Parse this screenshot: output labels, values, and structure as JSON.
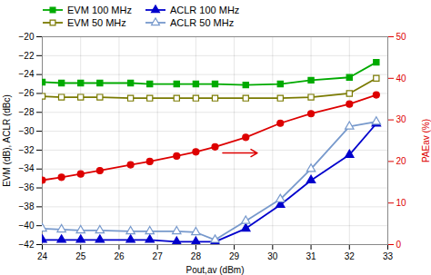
{
  "chart_data": {
    "type": "line",
    "x_label": "Pout,av (dBm)",
    "y_label": "EVM (dB), ACLR (dBc)",
    "y2_label": "PAEav (%)",
    "x": [
      24.0,
      24.5,
      25.0,
      25.5,
      26.3,
      26.8,
      27.5,
      28.0,
      28.5,
      29.3,
      30.2,
      31.0,
      32.0,
      32.7
    ],
    "series": [
      {
        "name": "EVM 100 MHz",
        "color": "#00aa00",
        "marker": "square",
        "values": [
          -24.8,
          -24.9,
          -24.9,
          -24.9,
          -24.9,
          -25.0,
          -25.0,
          -25.0,
          -25.0,
          -25.1,
          -25.0,
          -24.6,
          -24.3,
          -22.7
        ]
      },
      {
        "name": "EVM 50 MHz",
        "color": "#7a7a00",
        "marker": "square-open",
        "values": [
          -26.3,
          -26.4,
          -26.4,
          -26.4,
          -26.5,
          -26.5,
          -26.5,
          -26.5,
          -26.5,
          -26.5,
          -26.5,
          -26.4,
          -26.0,
          -24.4
        ]
      },
      {
        "name": "ACLR 100 MHz",
        "color": "#0000cc",
        "marker": "triangle",
        "values": [
          -41.5,
          -41.5,
          -41.5,
          -41.5,
          -41.5,
          -41.5,
          -41.7,
          -41.7,
          -41.7,
          -40.3,
          -37.8,
          -35.2,
          -32.5,
          -29.2
        ]
      },
      {
        "name": "ACLR 50 MHz",
        "color": "#7799cc",
        "marker": "triangle-open",
        "values": [
          -40.3,
          -40.4,
          -40.5,
          -40.5,
          -40.6,
          -40.6,
          -40.6,
          -40.7,
          -41.5,
          -39.5,
          -37.2,
          -34.0,
          -29.5,
          -29.0
        ]
      },
      {
        "color": "#dd0000",
        "marker": "circle",
        "axis": "y2",
        "values": [
          15.5,
          16.2,
          17.0,
          17.8,
          19.2,
          20.0,
          21.3,
          22.3,
          23.5,
          25.8,
          29.2,
          31.5,
          33.8,
          36.0
        ]
      }
    ],
    "xlim": [
      24,
      33
    ],
    "xticks": [
      24,
      25,
      26,
      27,
      28,
      29,
      30,
      31,
      32,
      33
    ],
    "ylim": [
      -42,
      -20
    ],
    "yticks": [
      -42,
      -40,
      -38,
      -36,
      -34,
      -32,
      -30,
      -28,
      -26,
      -24,
      -22,
      -20
    ],
    "y2lim": [
      0,
      50
    ],
    "y2ticks": [
      0,
      10,
      20,
      30,
      40,
      50
    ],
    "grid": true,
    "legend": "upper left",
    "arrows": [
      {
        "x_start": 28.7,
        "x_end": 29.6,
        "y": -32.3,
        "color": "#dd0000"
      }
    ]
  }
}
